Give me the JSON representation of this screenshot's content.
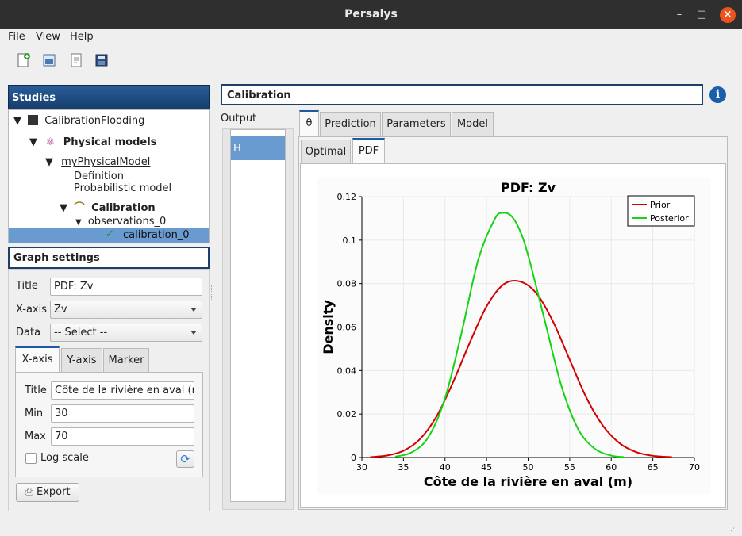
{
  "window": {
    "title": "Persalys"
  },
  "menu": [
    "File",
    "View",
    "Help"
  ],
  "studies": {
    "header": "Studies",
    "tree": {
      "root": "CalibrationFlooding",
      "physical_models": "Physical models",
      "model": "myPhysicalModel",
      "definition": "Definition",
      "probabilistic": "Probabilistic model",
      "calibration": "Calibration",
      "observations": "observations_0",
      "calibration_item": "calibration_0"
    }
  },
  "graph_settings": {
    "header": "Graph settings",
    "title_label": "Title",
    "title_value": "PDF: Zv",
    "xaxis_label": "X-axis",
    "xaxis_value": "Zv",
    "data_label": "Data",
    "data_value": "-- Select --",
    "tabs": [
      "X-axis",
      "Y-axis",
      "Marker"
    ],
    "axis_title_label": "Title",
    "axis_title_value": "Côte de la rivière en aval (m)",
    "min_label": "Min",
    "min_value": "30",
    "max_label": "Max",
    "max_value": "70",
    "log_scale_label": "Log scale",
    "export_label": "Export"
  },
  "main": {
    "title": "Calibration",
    "output_label": "Output",
    "outputs": [
      "H"
    ],
    "tabs": [
      "θ",
      "Prediction",
      "Parameters",
      "Model"
    ],
    "subtabs": [
      "Optimal",
      "PDF"
    ]
  },
  "colors": {
    "accent": "#1d5aa0",
    "selection": "#6a9bd0",
    "prior": "#d40000",
    "posterior": "#14d414"
  },
  "chart_data": {
    "type": "line",
    "title": "PDF: Zv",
    "xlabel": "Côte de la rivière en aval (m)",
    "ylabel": "Density",
    "xlim": [
      30,
      70
    ],
    "ylim": [
      0,
      0.12
    ],
    "xticks": [
      30,
      35,
      40,
      45,
      50,
      55,
      60,
      65,
      70
    ],
    "yticks": [
      0,
      0.02,
      0.04,
      0.06,
      0.08,
      0.1,
      0.12
    ],
    "ytick_labels": [
      "0",
      "0.02",
      "0.04",
      "0.06",
      "0.08",
      "0.1",
      "0.12"
    ],
    "grid": true,
    "legend_position": "top-right",
    "series": [
      {
        "name": "Prior",
        "color": "#d40000",
        "x": [
          31,
          33,
          35,
          37,
          39,
          41,
          43,
          45,
          47,
          49,
          51,
          53,
          55,
          57,
          59,
          61,
          63,
          65,
          67.3
        ],
        "y": [
          0.0002,
          0.0009,
          0.0031,
          0.0085,
          0.019,
          0.0349,
          0.053,
          0.0695,
          0.0795,
          0.081,
          0.0755,
          0.0625,
          0.045,
          0.0276,
          0.0146,
          0.0066,
          0.0025,
          0.0008,
          0.0002
        ]
      },
      {
        "name": "Posterior",
        "color": "#14d414",
        "x": [
          34,
          36,
          38,
          40,
          42,
          44,
          46,
          47,
          48,
          49,
          50,
          52,
          54,
          56,
          58,
          60,
          61.5
        ],
        "y": [
          0.0004,
          0.0024,
          0.0094,
          0.0272,
          0.0575,
          0.091,
          0.1098,
          0.1125,
          0.111,
          0.1045,
          0.093,
          0.063,
          0.033,
          0.0132,
          0.0041,
          0.0009,
          0.0002
        ]
      }
    ]
  }
}
